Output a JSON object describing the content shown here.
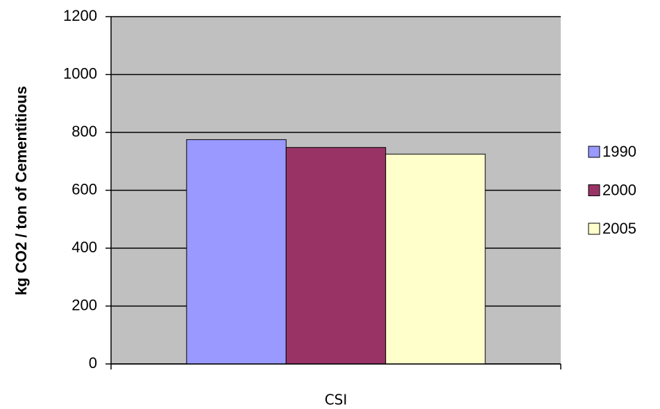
{
  "chart_data": {
    "type": "bar",
    "ylabel": "kg CO2 / ton of Cementitious",
    "xlabel": "CSI",
    "categories": [
      "CSI"
    ],
    "series": [
      {
        "name": "1990",
        "color": "#9999ff",
        "values": [
          775
        ]
      },
      {
        "name": "2000",
        "color": "#993366",
        "values": [
          748
        ]
      },
      {
        "name": "2005",
        "color": "#ffffcc",
        "values": [
          725
        ]
      }
    ],
    "ylim": [
      0,
      1200
    ],
    "yticks": [
      0,
      200,
      400,
      600,
      800,
      1000,
      1200
    ],
    "grid": true,
    "legend": "right"
  }
}
